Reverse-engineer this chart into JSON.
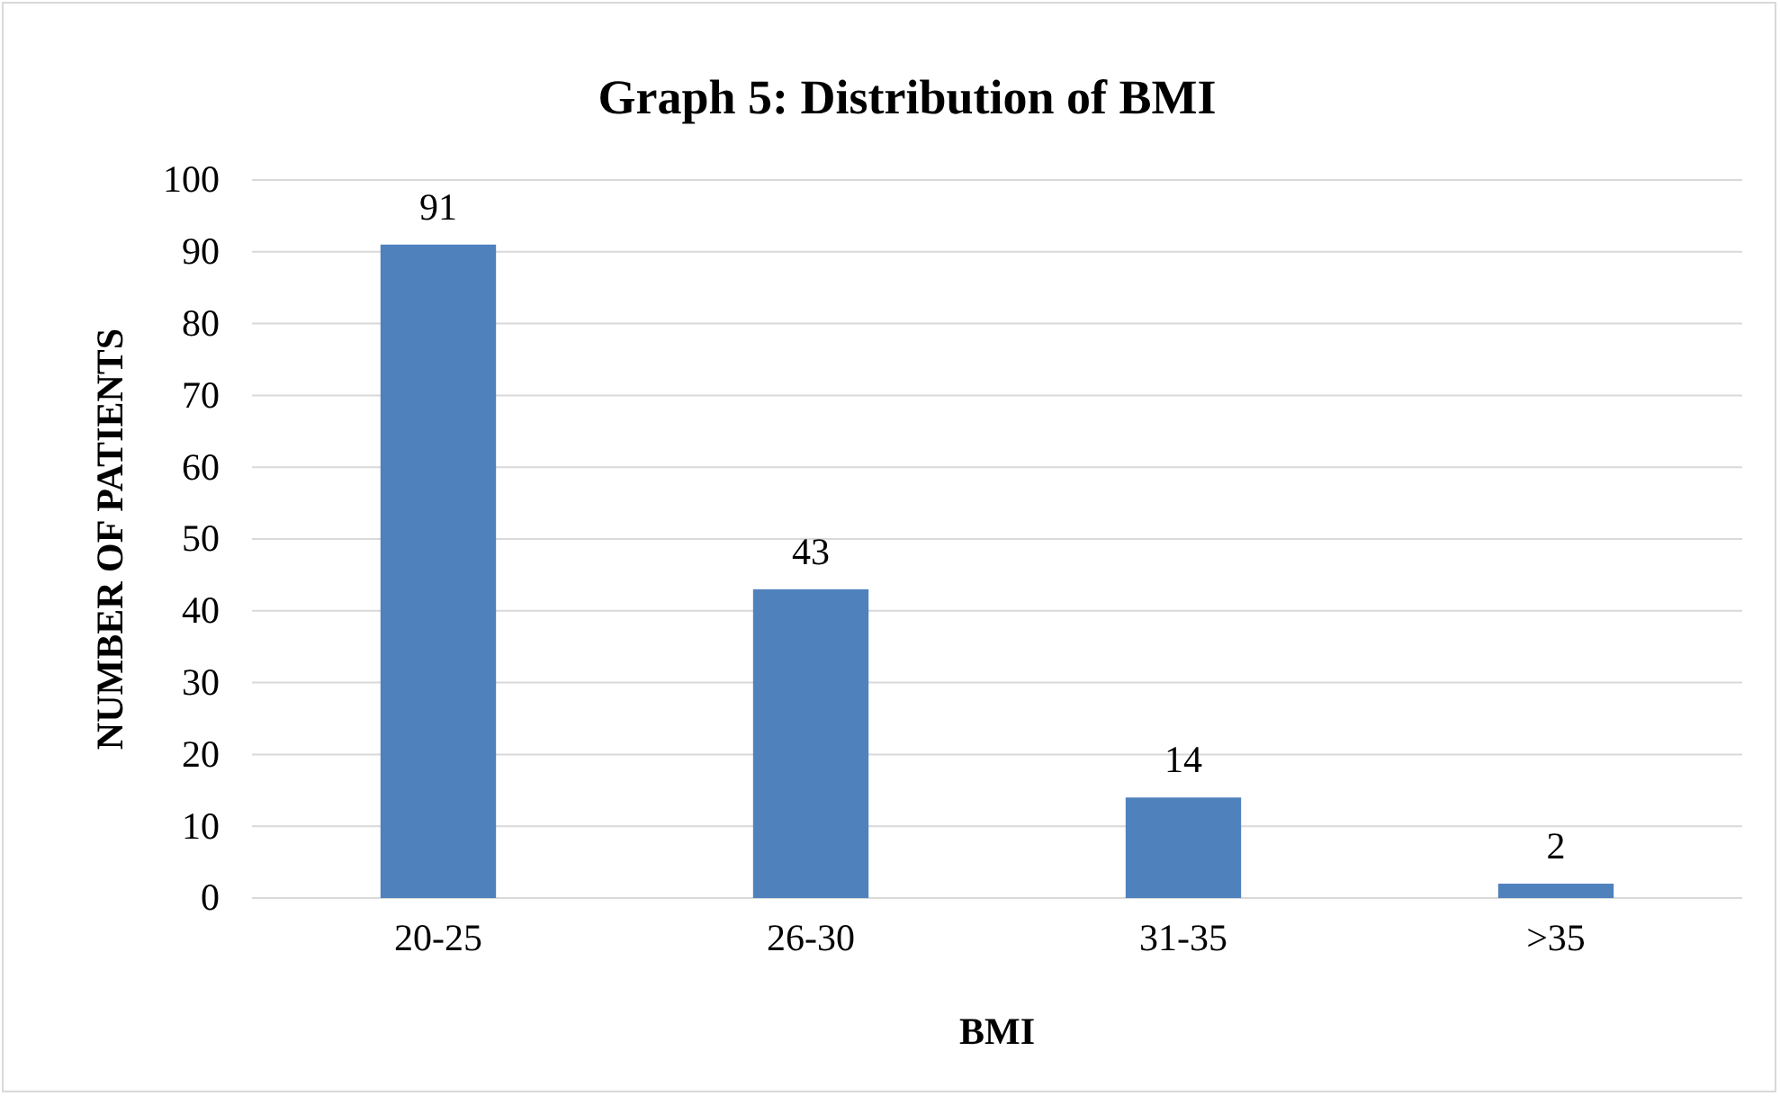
{
  "chart_data": {
    "type": "bar",
    "title": "Graph 5: Distribution of BMI",
    "xlabel": "BMI",
    "ylabel": "NUMBER OF PATIENTS",
    "categories": [
      "20-25",
      "26-30",
      "31-35",
      ">35"
    ],
    "values": [
      91,
      43,
      14,
      2
    ],
    "color": "#4f81bd",
    "ylim": [
      0,
      100
    ],
    "yticks": [
      0,
      10,
      20,
      30,
      40,
      50,
      60,
      70,
      80,
      90,
      100
    ],
    "grid": "y",
    "data_labels": true
  }
}
